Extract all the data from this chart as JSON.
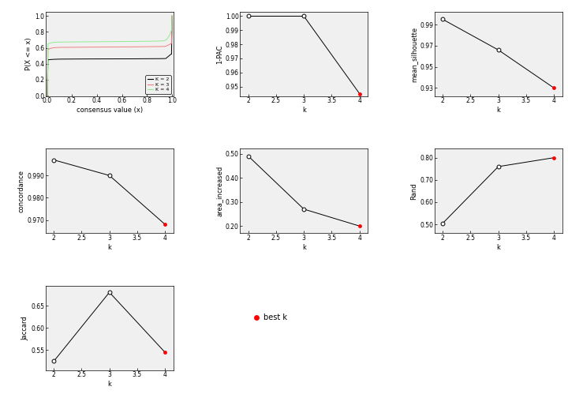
{
  "ecdf": {
    "k2_x": [
      0.0,
      0.005,
      0.01,
      0.05,
      0.1,
      0.3,
      0.5,
      0.7,
      0.9,
      0.94,
      0.95,
      0.99,
      0.995,
      1.0
    ],
    "k2_y": [
      0.0,
      0.0,
      0.45,
      0.455,
      0.458,
      0.46,
      0.461,
      0.462,
      0.464,
      0.465,
      0.466,
      0.519,
      0.52,
      1.0
    ],
    "k3_x": [
      0.0,
      0.005,
      0.01,
      0.05,
      0.1,
      0.3,
      0.5,
      0.7,
      0.9,
      0.94,
      0.95,
      0.99,
      0.995,
      1.0
    ],
    "k3_y": [
      0.0,
      0.0,
      0.582,
      0.6,
      0.605,
      0.608,
      0.61,
      0.612,
      0.616,
      0.618,
      0.62,
      0.65,
      0.655,
      1.0
    ],
    "k4_x": [
      0.0,
      0.005,
      0.01,
      0.05,
      0.1,
      0.3,
      0.5,
      0.7,
      0.9,
      0.94,
      0.96,
      0.98,
      0.99,
      0.995,
      1.0
    ],
    "k4_y": [
      0.0,
      0.0,
      0.65,
      0.668,
      0.672,
      0.675,
      0.678,
      0.68,
      0.685,
      0.69,
      0.71,
      0.76,
      0.8,
      0.82,
      1.0
    ]
  },
  "pac": {
    "k": [
      2,
      3,
      4
    ],
    "values": [
      1.0,
      1.0,
      0.945
    ],
    "best_k": 4,
    "yticks": [
      0.95,
      0.96,
      0.97,
      0.98,
      0.99,
      1.0
    ],
    "ylim": [
      0.943,
      1.003
    ]
  },
  "mean_silhouette": {
    "k": [
      2,
      3,
      4
    ],
    "values": [
      0.995,
      0.966,
      0.93
    ],
    "best_k": 4,
    "yticks": [
      0.93,
      0.95,
      0.97,
      0.99
    ],
    "ylim": [
      0.922,
      1.002
    ]
  },
  "concordance": {
    "k": [
      2,
      3,
      4
    ],
    "values": [
      0.997,
      0.99,
      0.968
    ],
    "best_k": 4,
    "yticks": [
      0.97,
      0.98,
      0.99
    ],
    "ylim": [
      0.964,
      1.002
    ]
  },
  "area_increased": {
    "k": [
      2,
      3,
      4
    ],
    "values": [
      0.49,
      0.27,
      0.2
    ],
    "best_k": 4,
    "yticks": [
      0.2,
      0.3,
      0.4,
      0.5
    ],
    "ylim": [
      0.17,
      0.52
    ]
  },
  "rand": {
    "k": [
      2,
      3,
      4
    ],
    "values": [
      0.505,
      0.76,
      0.8
    ],
    "best_k": 4,
    "yticks": [
      0.5,
      0.6,
      0.7,
      0.8
    ],
    "ylim": [
      0.46,
      0.84
    ]
  },
  "jaccard": {
    "k": [
      2,
      3,
      4
    ],
    "values": [
      0.525,
      0.68,
      0.545
    ],
    "best_k": 4,
    "yticks": [
      0.55,
      0.6,
      0.65
    ],
    "ylim": [
      0.505,
      0.695
    ]
  },
  "colors": {
    "k2": "#000000",
    "k3": "#F08080",
    "k4": "#90EE90",
    "best": "#FF0000"
  },
  "bg_color": "#F0F0F0",
  "panel_bg": "#F5F5F5"
}
